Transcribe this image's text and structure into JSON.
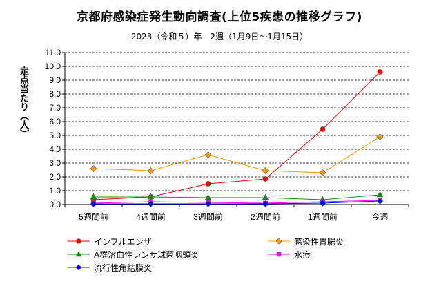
{
  "chart_data": {
    "type": "line",
    "title": "京都府感染症発生動向調査(上位5疾患の推移グラフ)",
    "subtitle": "2023（令和５）年　2週（1月9日～1月15日）",
    "ylabel": "定点当たり（人）",
    "xlabel": "",
    "categories": [
      "5週間前",
      "4週間前",
      "3週間前",
      "2週間前",
      "1週間前",
      "今週"
    ],
    "ylim": [
      0,
      11
    ],
    "ytick_step": 1,
    "ytick_labels": [
      "0.0",
      "1.0",
      "2.0",
      "3.0",
      "4.0",
      "5.0",
      "6.0",
      "7.0",
      "8.0",
      "9.0",
      "10.0",
      "11.0"
    ],
    "grid": "horizontal-dashed",
    "legend_position": "bottom",
    "series": [
      {
        "name": "インフルエンザ",
        "color": "#ff0000",
        "marker": "circle",
        "values": [
          0.35,
          0.55,
          1.5,
          1.85,
          5.45,
          9.6
        ]
      },
      {
        "name": "感染性胃腸炎",
        "color": "#ff9900",
        "marker": "diamond",
        "values": [
          2.6,
          2.45,
          3.6,
          2.45,
          2.3,
          4.9
        ]
      },
      {
        "name": "A群溶血性レンサ球菌咽頭炎",
        "color": "#009900",
        "marker": "triangle",
        "values": [
          0.55,
          0.55,
          0.5,
          0.5,
          0.35,
          0.7
        ]
      },
      {
        "name": "水痘",
        "color": "#ff00ff",
        "marker": "square",
        "values": [
          0.1,
          0.2,
          0.15,
          0.1,
          0.2,
          0.3
        ]
      },
      {
        "name": "流行性角結膜炎",
        "color": "#0000ff",
        "marker": "diamond",
        "values": [
          0.05,
          0.05,
          0.05,
          0.05,
          0.1,
          0.25
        ]
      }
    ]
  }
}
